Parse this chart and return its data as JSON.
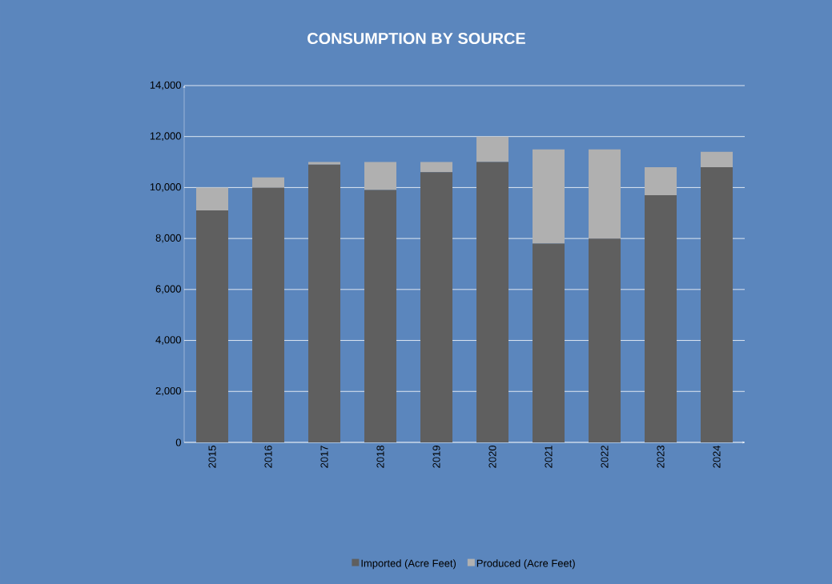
{
  "chart_data": {
    "type": "bar",
    "title": "CONSUMPTION BY SOURCE",
    "stacked": true,
    "categories": [
      "2015",
      "2016",
      "2017",
      "2018",
      "2019",
      "2020",
      "2021",
      "2022",
      "2023",
      "2024"
    ],
    "series": [
      {
        "name": "Imported (Acre Feet)",
        "color": "#5f5f5f",
        "values": [
          9100,
          10000,
          10900,
          9900,
          10600,
          11000,
          7800,
          8000,
          9700,
          10800
        ]
      },
      {
        "name": "Produced (Acre Feet)",
        "color": "#b0b0b0",
        "values": [
          900,
          400,
          100,
          1100,
          400,
          1000,
          3700,
          3500,
          1100,
          600
        ]
      }
    ],
    "ylim": [
      0,
      14000
    ],
    "yticks": [
      {
        "value": 0,
        "label": "0"
      },
      {
        "value": 2000,
        "label": "2,000"
      },
      {
        "value": 4000,
        "label": "4,000"
      },
      {
        "value": 6000,
        "label": "6,000"
      },
      {
        "value": 8000,
        "label": "8,000"
      },
      {
        "value": 10000,
        "label": "10,000"
      },
      {
        "value": 12000,
        "label": "12,000"
      },
      {
        "value": 14000,
        "label": "14,000"
      }
    ],
    "grid": "y",
    "legend": "bottom"
  }
}
